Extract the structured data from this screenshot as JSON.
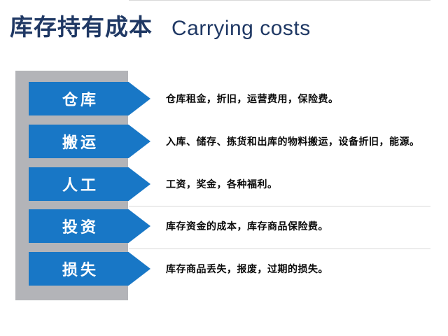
{
  "title": {
    "zh": "库存持有成本",
    "en": "Carrying costs"
  },
  "colors": {
    "accent_blue": "#1877C6",
    "band_gray": "#B3B4B8",
    "title_navy": "#1F3864",
    "line_gray": "#D9D9D9",
    "label_white": "#FFFFFF",
    "body_black": "#0A0A0A"
  },
  "rows": [
    {
      "label": "仓库",
      "description": "仓库租金，折旧，运营费用，保险费。"
    },
    {
      "label": "搬运",
      "description": "入库、储存、拣货和出库的物料搬运，设备折旧，能源。"
    },
    {
      "label": "人工",
      "description": "工资，奖金，各种福利。"
    },
    {
      "label": "投资",
      "description": "库存资金的成本，库存商品保险费。"
    },
    {
      "label": "损失",
      "description": "库存商品丢失，报废，过期的损失。"
    }
  ]
}
